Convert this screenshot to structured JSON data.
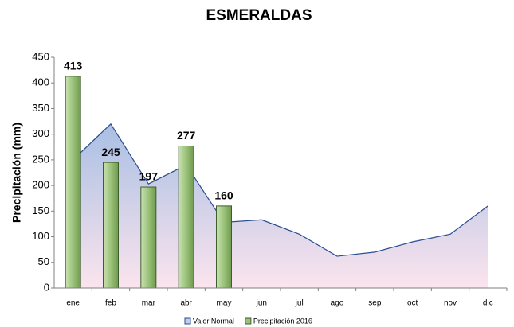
{
  "chart_data": {
    "type": "bar_area",
    "title": "ESMERALDAS",
    "y_label": "Precipitación (mm)",
    "categories": [
      "ene",
      "feb",
      "mar",
      "abr",
      "may",
      "jun",
      "jul",
      "ago",
      "sep",
      "oct",
      "nov",
      "dic"
    ],
    "series": [
      {
        "name": "Valor Normal",
        "type": "area",
        "color": "#2a4d8f",
        "values": [
          250,
          320,
          203,
          240,
          128,
          133,
          105,
          62,
          70,
          90,
          105,
          160
        ]
      },
      {
        "name": "Precipitación 2016",
        "type": "bar",
        "color": "#9bc27a",
        "values": [
          413,
          245,
          197,
          277,
          160,
          null,
          null,
          null,
          null,
          null,
          null,
          null
        ]
      }
    ],
    "ylim": [
      0,
      450
    ],
    "yticks": [
      0,
      50,
      100,
      150,
      200,
      250,
      300,
      350,
      400,
      450
    ],
    "grid": false
  }
}
